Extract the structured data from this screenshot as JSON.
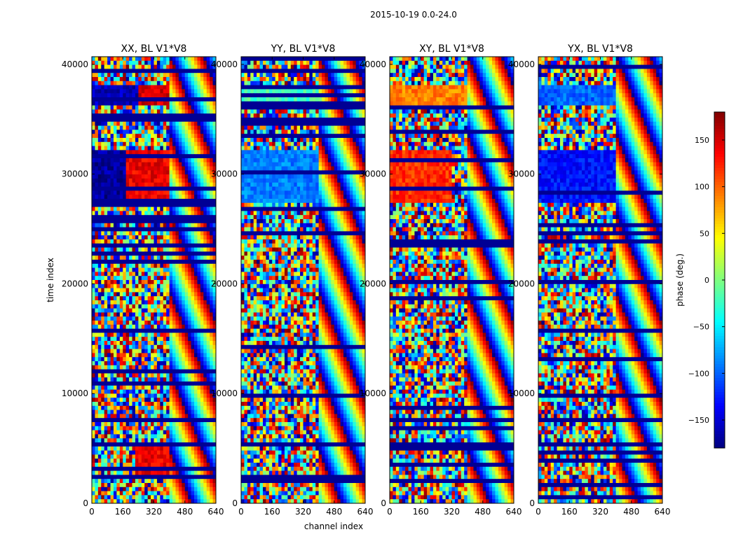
{
  "figure": {
    "title": "2015-10-19 0.0-24.0",
    "xlabel": "channel index",
    "ylabel": "time index"
  },
  "chart_data": [
    {
      "type": "heatmap",
      "title": "XX, BL V1*V8",
      "xlabel": "channel index",
      "ylabel": "time index",
      "xlim": [
        0,
        640
      ],
      "ylim": [
        0,
        40700
      ],
      "xticks": [
        0,
        160,
        320,
        480,
        640
      ],
      "yticks": [
        0,
        10000,
        20000,
        30000,
        40000
      ],
      "value": "phase (deg.)",
      "dominant_bands": [
        {
          "t": [
            36300,
            38200
          ],
          "ch": [
            0,
            240
          ],
          "phase": -160
        },
        {
          "t": [
            36300,
            38200
          ],
          "ch": [
            240,
            400
          ],
          "phase": 150
        },
        {
          "t": [
            27500,
            32200
          ],
          "ch": [
            0,
            180
          ],
          "phase": -170
        },
        {
          "t": [
            27500,
            32200
          ],
          "ch": [
            180,
            400
          ],
          "phase": 140
        },
        {
          "t": [
            2500,
            5500
          ],
          "ch": [
            230,
            400
          ],
          "phase": 140
        }
      ]
    },
    {
      "type": "heatmap",
      "title": "YY, BL V1*V8",
      "xlabel": "channel index",
      "ylabel": "time index",
      "xlim": [
        0,
        640
      ],
      "ylim": [
        0,
        40700
      ],
      "xticks": [
        0,
        160,
        320,
        480,
        640
      ],
      "yticks": [
        0,
        10000,
        20000,
        30000,
        40000
      ],
      "value": "phase (deg.)",
      "dominant_bands": [
        {
          "t": [
            36300,
            38200
          ],
          "ch": [
            0,
            400
          ],
          "phase": -20
        },
        {
          "t": [
            27500,
            32200
          ],
          "ch": [
            0,
            400
          ],
          "phase": -90
        }
      ]
    },
    {
      "type": "heatmap",
      "title": "XY, BL V1*V8",
      "xlabel": "channel index",
      "ylabel": "time index",
      "xlim": [
        0,
        640
      ],
      "ylim": [
        0,
        40700
      ],
      "xticks": [
        0,
        160,
        320,
        480,
        640
      ],
      "yticks": [
        0,
        10000,
        20000,
        30000,
        40000
      ],
      "value": "phase (deg.)",
      "dominant_bands": [
        {
          "t": [
            36300,
            38200
          ],
          "ch": [
            0,
            400
          ],
          "phase": 90
        },
        {
          "t": [
            27500,
            32200
          ],
          "ch": [
            0,
            320
          ],
          "phase": 120
        }
      ]
    },
    {
      "type": "heatmap",
      "title": "YX, BL V1*V8",
      "xlabel": "channel index",
      "ylabel": "time index",
      "xlim": [
        0,
        640
      ],
      "ylim": [
        0,
        40700
      ],
      "xticks": [
        0,
        160,
        320,
        480,
        640
      ],
      "yticks": [
        0,
        10000,
        20000,
        30000,
        40000
      ],
      "value": "phase (deg.)",
      "dominant_bands": [
        {
          "t": [
            36300,
            38200
          ],
          "ch": [
            0,
            400
          ],
          "phase": -100
        },
        {
          "t": [
            27500,
            32200
          ],
          "ch": [
            0,
            400
          ],
          "phase": -130
        }
      ]
    }
  ],
  "colorbar": {
    "label": "phase (deg.)",
    "colormap": "jet",
    "range": [
      -180,
      180
    ],
    "ticks": [
      150,
      100,
      50,
      0,
      -50,
      -100,
      -150
    ],
    "tick_labels": [
      "150",
      "100",
      "50",
      "0",
      "−50",
      "−100",
      "−150"
    ]
  }
}
